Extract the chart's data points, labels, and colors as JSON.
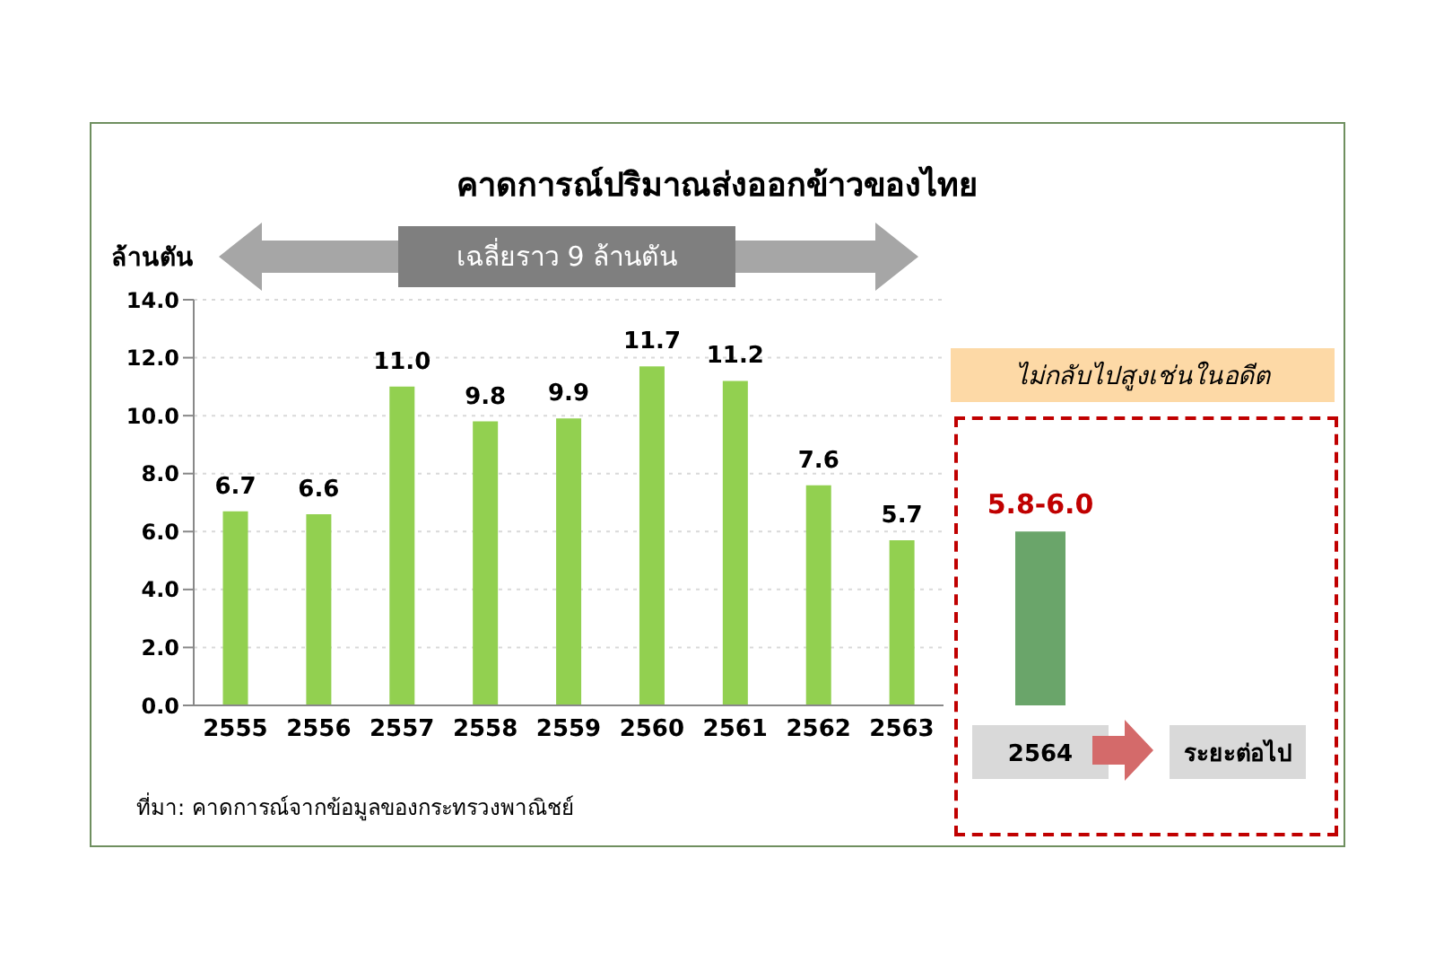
{
  "chart_data": [
    {
      "type": "bar",
      "title": "คาดการณ์ปริมาณส่งออกข้าวของไทย",
      "ylabel": "ล้านตัน",
      "categories": [
        "2555",
        "2556",
        "2557",
        "2558",
        "2559",
        "2560",
        "2561",
        "2562",
        "2563"
      ],
      "values": [
        6.7,
        6.6,
        11.0,
        9.8,
        9.9,
        11.7,
        11.2,
        7.6,
        5.7
      ],
      "color": "#92d050",
      "ylim": [
        0,
        14
      ],
      "yticks": [
        {
          "value": 0,
          "label": "0.0"
        },
        {
          "value": 2,
          "label": "2.0"
        },
        {
          "value": 4,
          "label": "4.0"
        },
        {
          "value": 6,
          "label": "6.0"
        },
        {
          "value": 8,
          "label": "8.0"
        },
        {
          "value": 10,
          "label": "10.0"
        },
        {
          "value": 12,
          "label": "12.0"
        },
        {
          "value": 14,
          "label": "14.0"
        }
      ],
      "grid": "y",
      "value_labels": [
        "6.7",
        "6.6",
        "11.0",
        "9.8",
        "9.9",
        "11.7",
        "11.2",
        "7.6",
        "5.7"
      ],
      "annotations": [
        "เฉลี่ยราว 9 ล้านตัน",
        "ที่มา: คาดการณ์จากข้อมูลของกระทรวงพาณิชย์"
      ]
    },
    {
      "type": "bar",
      "title": "ไม่กลับไปสูงเช่นในอดีต",
      "categories": [
        "2564",
        "ระยะต่อไป"
      ],
      "values": [
        6.0,
        null
      ],
      "value_labels": [
        "5.8-6.0",
        null
      ],
      "color": "#6aa56a",
      "ylim": [
        0,
        14
      ],
      "tick_labels": "x"
    }
  ]
}
